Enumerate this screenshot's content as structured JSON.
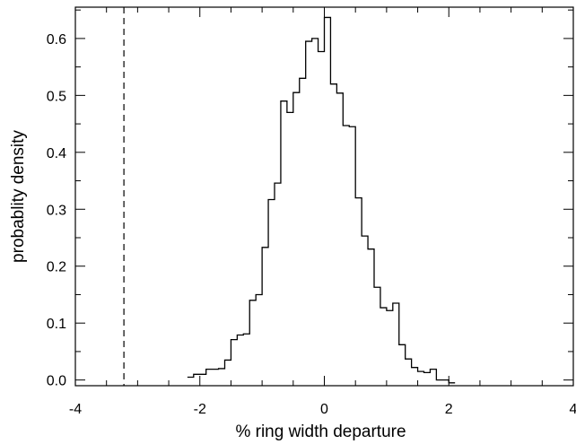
{
  "chart_data": {
    "type": "histogram",
    "xlabel": "% ring width departure",
    "ylabel": "probablity density",
    "xlim": [
      -4,
      4
    ],
    "ylim": [
      -0.01,
      0.655
    ],
    "xticks": [
      -4,
      -2,
      0,
      2,
      4
    ],
    "xtick_labels": [
      "-4",
      "-2",
      "0",
      "2",
      "4"
    ],
    "yticks": [
      0.0,
      0.1,
      0.2,
      0.3,
      0.4,
      0.5,
      0.6
    ],
    "ytick_labels": [
      "0.0",
      "0.1",
      "0.2",
      "0.3",
      "0.4",
      "0.5",
      "0.6"
    ],
    "grid": false,
    "bin_width": 0.1,
    "bin_edges_start": -2.2,
    "densities": [
      0.005,
      0.01,
      0.01,
      0.019,
      0.019,
      0.02,
      0.035,
      0.071,
      0.079,
      0.081,
      0.14,
      0.15,
      0.233,
      0.317,
      0.346,
      0.49,
      0.47,
      0.505,
      0.53,
      0.595,
      0.6,
      0.577,
      0.637,
      0.52,
      0.504,
      0.447,
      0.445,
      0.32,
      0.253,
      0.23,
      0.163,
      0.127,
      0.122,
      0.135,
      0.062,
      0.037,
      0.022,
      0.015,
      0.013,
      0.019,
      0.0,
      0.0,
      -0.005
    ],
    "reference_line": {
      "x": -3.22,
      "style": "dashed"
    }
  }
}
